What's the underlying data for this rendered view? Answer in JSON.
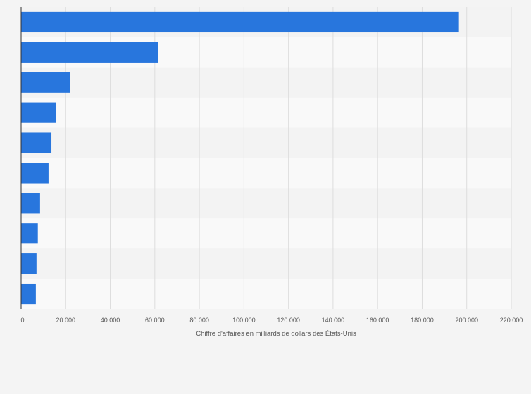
{
  "chart_data": {
    "type": "bar",
    "orientation": "horizontal",
    "title": "",
    "xlabel": "Chiffre d'affaires en milliards de dollars des États-Unis",
    "ylabel": "",
    "categories": [
      "",
      "",
      "",
      "",
      "",
      "",
      "",
      "",
      "",
      ""
    ],
    "values": [
      196500,
      61500,
      22000,
      15800,
      13600,
      12300,
      8500,
      7500,
      6900,
      6600
    ],
    "xlim": [
      0,
      220000
    ],
    "xticks": [
      0,
      20000,
      40000,
      60000,
      80000,
      100000,
      120000,
      140000,
      160000,
      180000,
      200000,
      220000
    ],
    "xtick_labels": [
      "0",
      "20.000",
      "40.000",
      "60.000",
      "80.000",
      "100.000",
      "120.000",
      "140.000",
      "160.000",
      "180.000",
      "200.000",
      "220.000"
    ],
    "grid": true,
    "legend": false,
    "colors": {
      "bar": "#2876dd",
      "band_light": "#f9f9f9",
      "band_dark": "#f3f3f3",
      "grid": "#dddddd",
      "axis": "#333333",
      "text": "#555555",
      "background": "#f4f4f4"
    }
  }
}
